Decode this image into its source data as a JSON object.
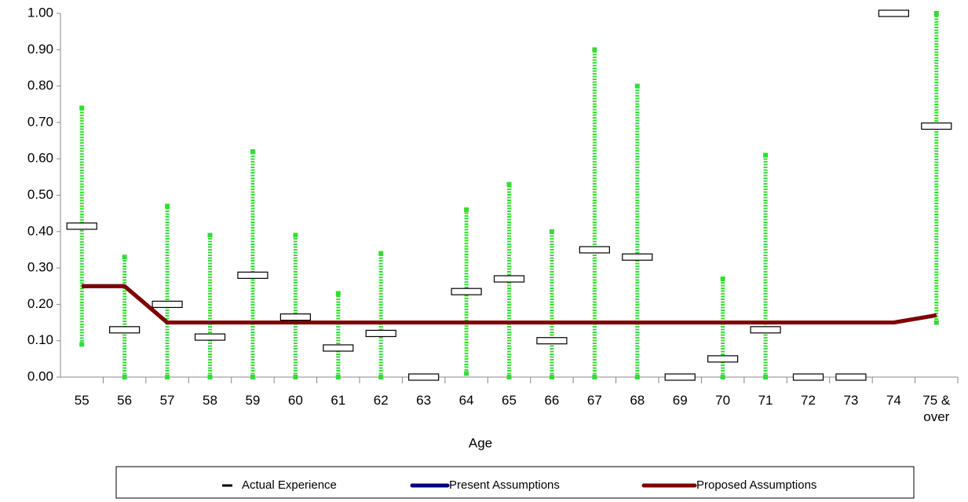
{
  "chart_data": {
    "type": "line",
    "x_label": "Age",
    "categories": [
      "55",
      "56",
      "57",
      "58",
      "59",
      "60",
      "61",
      "62",
      "63",
      "64",
      "65",
      "66",
      "67",
      "68",
      "69",
      "70",
      "71",
      "72",
      "73",
      "74",
      "75 & over"
    ],
    "ylim": [
      0,
      1
    ],
    "yticks": [
      {
        "value": 0,
        "label": "0.00"
      },
      {
        "value": 0.1,
        "label": "0.10"
      },
      {
        "value": 0.2,
        "label": "0.20"
      },
      {
        "value": 0.3,
        "label": "0.30"
      },
      {
        "value": 0.4,
        "label": "0.40"
      },
      {
        "value": 0.5,
        "label": "0.50"
      },
      {
        "value": 0.6,
        "label": "0.60"
      },
      {
        "value": 0.7,
        "label": "0.70"
      },
      {
        "value": 0.8,
        "label": "0.80"
      },
      {
        "value": 0.9,
        "label": "0.90"
      },
      {
        "value": 1,
        "label": "1.00"
      }
    ],
    "series": [
      {
        "name": "Actual Experience",
        "color": "#000000",
        "interval_color": "#33dd33",
        "values": [
          0.415,
          0.13,
          0.2,
          0.11,
          0.28,
          0.165,
          0.08,
          0.12,
          0,
          0.235,
          0.27,
          0.1,
          0.35,
          0.33,
          0,
          0.05,
          0.13,
          0,
          0,
          1,
          0.69
        ],
        "low": [
          0.09,
          0,
          0,
          0,
          0,
          0,
          0,
          0,
          0,
          0.01,
          0,
          0,
          0,
          0,
          0,
          0,
          0,
          0,
          0,
          1,
          0.15
        ],
        "high": [
          0.74,
          0.33,
          0.47,
          0.39,
          0.62,
          0.39,
          0.23,
          0.34,
          0,
          0.46,
          0.53,
          0.4,
          0.9,
          0.8,
          0,
          0.27,
          0.61,
          0,
          0,
          1,
          1
        ]
      },
      {
        "name": "Present Assumptions",
        "color": "#000080",
        "values": [
          0.25,
          0.25,
          0.15,
          0.15,
          0.15,
          0.15,
          0.15,
          0.15,
          0.15,
          0.15,
          0.15,
          0.15,
          0.15,
          0.15,
          0.15,
          0.15,
          0.15,
          0.15,
          0.15,
          0.15,
          0.17
        ]
      },
      {
        "name": "Proposed Assumptions",
        "color": "#800000",
        "values": [
          0.25,
          0.25,
          0.15,
          0.15,
          0.15,
          0.15,
          0.15,
          0.15,
          0.15,
          0.15,
          0.15,
          0.15,
          0.15,
          0.15,
          0.15,
          0.15,
          0.15,
          0.15,
          0.15,
          0.15,
          0.17
        ]
      }
    ]
  }
}
